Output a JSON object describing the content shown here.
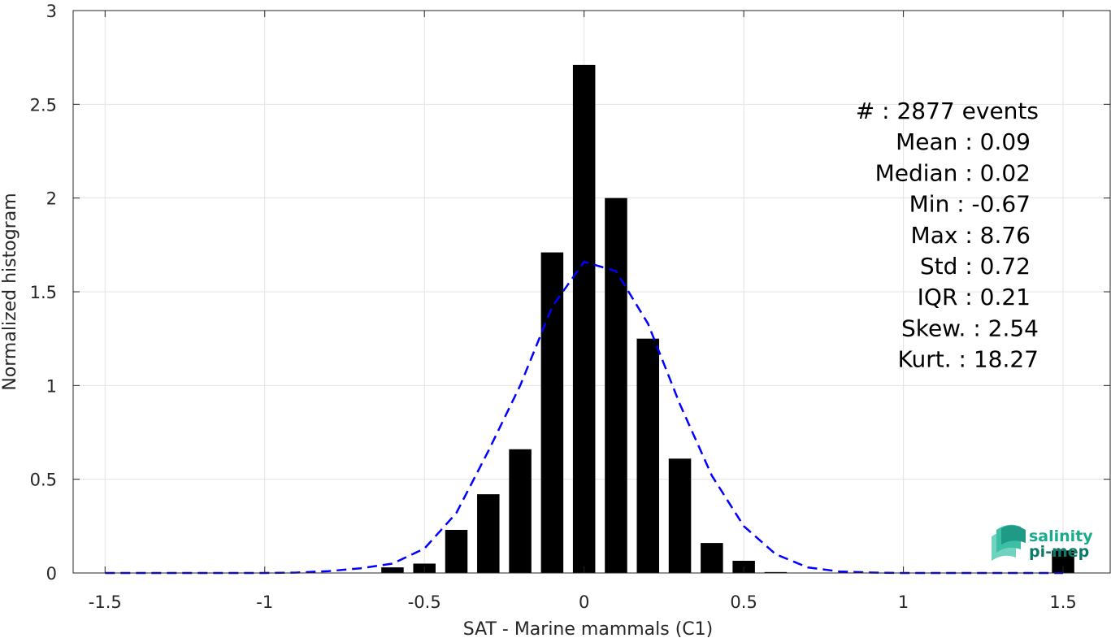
{
  "chart_data": {
    "type": "bar",
    "xlabel": "SAT - Marine mammals (C1)",
    "ylabel": "Normalized histogram",
    "xlim": [
      -1.6,
      1.65
    ],
    "ylim": [
      0,
      3
    ],
    "xticks": [
      -1.5,
      -1,
      -0.5,
      0,
      0.5,
      1,
      1.5
    ],
    "xtick_labels": [
      "-1.5",
      "-1",
      "-0.5",
      "0",
      "0.5",
      "1",
      "1.5"
    ],
    "yticks": [
      0,
      0.5,
      1,
      1.5,
      2,
      2.5,
      3
    ],
    "ytick_labels": [
      "0",
      "0.5",
      "1",
      "1.5",
      "2",
      "2.5",
      "3"
    ],
    "grid": true,
    "bar_width": 0.07,
    "bars": {
      "x": [
        -0.6,
        -0.5,
        -0.4,
        -0.3,
        -0.2,
        -0.1,
        0.0,
        0.1,
        0.2,
        0.3,
        0.4,
        0.5,
        0.6,
        1.5
      ],
      "values": [
        0.03,
        0.05,
        0.23,
        0.42,
        0.66,
        1.71,
        2.71,
        2.0,
        1.25,
        0.61,
        0.16,
        0.065,
        0.005,
        0.12
      ],
      "color": "#000000"
    },
    "fit": {
      "style": "dashed",
      "color": "#0000ff",
      "x": [
        -1.5,
        -1.4,
        -1.3,
        -1.2,
        -1.1,
        -1.0,
        -0.9,
        -0.8,
        -0.7,
        -0.6,
        -0.5,
        -0.4,
        -0.3,
        -0.2,
        -0.1,
        0.0,
        0.1,
        0.2,
        0.3,
        0.4,
        0.5,
        0.6,
        0.7,
        0.8,
        0.9,
        1.0,
        1.1,
        1.2,
        1.3,
        1.4,
        1.5
      ],
      "y": [
        0,
        0,
        0,
        0,
        0,
        0,
        0.002,
        0.01,
        0.025,
        0.05,
        0.13,
        0.32,
        0.65,
        1.0,
        1.42,
        1.66,
        1.61,
        1.33,
        0.9,
        0.52,
        0.25,
        0.1,
        0.03,
        0.008,
        0.002,
        0,
        0,
        0,
        0,
        0,
        0
      ]
    },
    "stats": [
      "#  : 2877 events",
      "Mean : 0.09",
      "Median : 0.02",
      "Min : -0.67",
      "Max : 8.76",
      "Std : 0.72",
      "IQR : 0.21",
      "Skew. : 2.54",
      "Kurt. : 18.27"
    ]
  },
  "logo": {
    "line1": "salinity",
    "line2": "pi-mep",
    "color1": "#1aaa8c",
    "color2": "#0e7a6a"
  }
}
